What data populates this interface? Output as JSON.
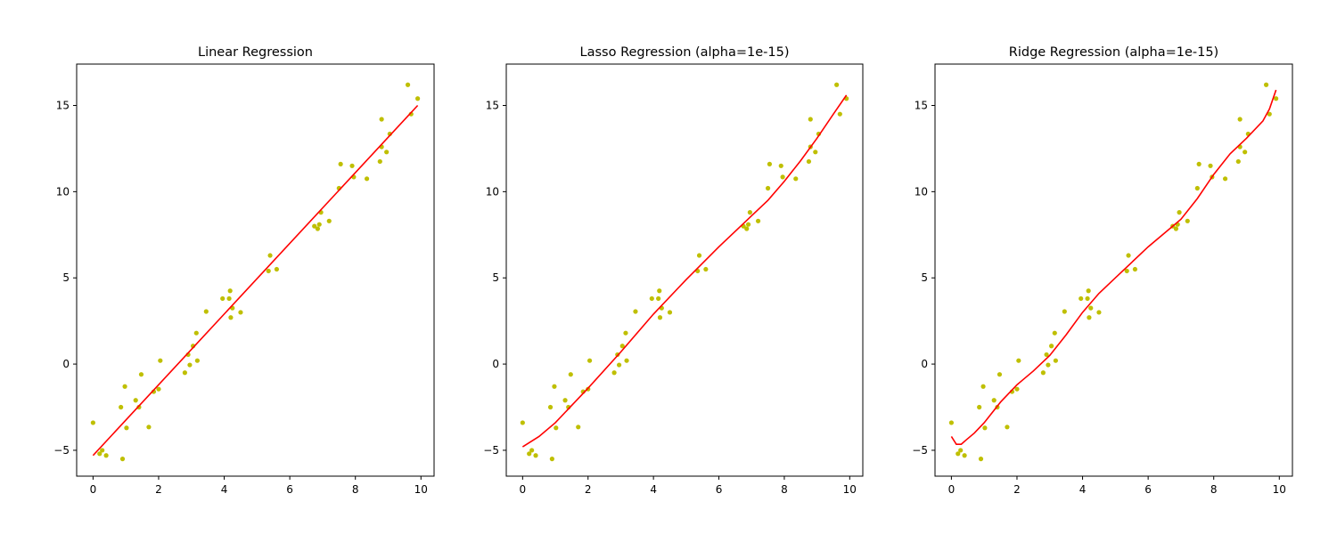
{
  "chart_data": [
    {
      "type": "scatter",
      "title": "Linear Regression",
      "xlim": [
        -0.5,
        10.4
      ],
      "ylim": [
        -6.5,
        17.4
      ],
      "xticks": [
        0,
        2,
        4,
        6,
        8,
        10
      ],
      "yticks": [
        -5,
        0,
        5,
        10,
        15
      ],
      "points_color": "#bfbf00",
      "line_color": "#ff0000",
      "points": [
        [
          0.0,
          -3.4
        ],
        [
          0.2,
          -5.2
        ],
        [
          0.28,
          -5.0
        ],
        [
          0.4,
          -5.3
        ],
        [
          0.85,
          -2.5
        ],
        [
          0.9,
          -5.5
        ],
        [
          0.97,
          -1.3
        ],
        [
          1.02,
          -3.7
        ],
        [
          1.3,
          -2.1
        ],
        [
          1.4,
          -2.5
        ],
        [
          1.47,
          -0.6
        ],
        [
          1.7,
          -3.65
        ],
        [
          1.85,
          -1.6
        ],
        [
          2.0,
          -1.45
        ],
        [
          2.05,
          0.2
        ],
        [
          2.8,
          -0.5
        ],
        [
          2.9,
          0.55
        ],
        [
          2.95,
          -0.05
        ],
        [
          3.05,
          1.05
        ],
        [
          3.15,
          1.8
        ],
        [
          3.18,
          0.2
        ],
        [
          3.45,
          3.05
        ],
        [
          3.95,
          3.8
        ],
        [
          4.15,
          3.8
        ],
        [
          4.18,
          4.25
        ],
        [
          4.2,
          2.7
        ],
        [
          4.25,
          3.25
        ],
        [
          4.5,
          3.0
        ],
        [
          5.35,
          5.4
        ],
        [
          5.4,
          6.3
        ],
        [
          5.6,
          5.5
        ],
        [
          6.75,
          8.0
        ],
        [
          6.85,
          7.85
        ],
        [
          6.9,
          8.1
        ],
        [
          6.95,
          8.8
        ],
        [
          7.2,
          8.3
        ],
        [
          7.5,
          10.2
        ],
        [
          7.55,
          11.6
        ],
        [
          7.9,
          11.5
        ],
        [
          7.95,
          10.85
        ],
        [
          8.35,
          10.75
        ],
        [
          8.75,
          11.75
        ],
        [
          8.8,
          14.2
        ],
        [
          8.8,
          12.6
        ],
        [
          8.95,
          12.3
        ],
        [
          9.05,
          13.35
        ],
        [
          9.6,
          16.2
        ],
        [
          9.7,
          14.5
        ],
        [
          9.9,
          15.4
        ]
      ],
      "line": {
        "x": [
          0.0,
          9.9
        ],
        "y": [
          -5.3,
          15.0
        ]
      }
    },
    {
      "type": "scatter",
      "title": "Lasso Regression (alpha=1e-15)",
      "xlim": [
        -0.5,
        10.4
      ],
      "ylim": [
        -6.5,
        17.4
      ],
      "xticks": [
        0,
        2,
        4,
        6,
        8,
        10
      ],
      "yticks": [
        -5,
        0,
        5,
        10,
        15
      ],
      "points_color": "#bfbf00",
      "line_color": "#ff0000",
      "points": [
        [
          0.0,
          -3.4
        ],
        [
          0.2,
          -5.2
        ],
        [
          0.28,
          -5.0
        ],
        [
          0.4,
          -5.3
        ],
        [
          0.85,
          -2.5
        ],
        [
          0.9,
          -5.5
        ],
        [
          0.97,
          -1.3
        ],
        [
          1.02,
          -3.7
        ],
        [
          1.3,
          -2.1
        ],
        [
          1.4,
          -2.5
        ],
        [
          1.47,
          -0.6
        ],
        [
          1.7,
          -3.65
        ],
        [
          1.85,
          -1.6
        ],
        [
          2.0,
          -1.45
        ],
        [
          2.05,
          0.2
        ],
        [
          2.8,
          -0.5
        ],
        [
          2.9,
          0.55
        ],
        [
          2.95,
          -0.05
        ],
        [
          3.05,
          1.05
        ],
        [
          3.15,
          1.8
        ],
        [
          3.18,
          0.2
        ],
        [
          3.45,
          3.05
        ],
        [
          3.95,
          3.8
        ],
        [
          4.15,
          3.8
        ],
        [
          4.18,
          4.25
        ],
        [
          4.2,
          2.7
        ],
        [
          4.25,
          3.25
        ],
        [
          4.5,
          3.0
        ],
        [
          5.35,
          5.4
        ],
        [
          5.4,
          6.3
        ],
        [
          5.6,
          5.5
        ],
        [
          6.75,
          8.0
        ],
        [
          6.85,
          7.85
        ],
        [
          6.9,
          8.1
        ],
        [
          6.95,
          8.8
        ],
        [
          7.2,
          8.3
        ],
        [
          7.5,
          10.2
        ],
        [
          7.55,
          11.6
        ],
        [
          7.9,
          11.5
        ],
        [
          7.95,
          10.85
        ],
        [
          8.35,
          10.75
        ],
        [
          8.75,
          11.75
        ],
        [
          8.8,
          14.2
        ],
        [
          8.8,
          12.6
        ],
        [
          8.95,
          12.3
        ],
        [
          9.05,
          13.35
        ],
        [
          9.6,
          16.2
        ],
        [
          9.7,
          14.5
        ],
        [
          9.9,
          15.4
        ]
      ],
      "line": {
        "x": [
          0.0,
          0.5,
          1.0,
          1.5,
          2.0,
          3.0,
          4.0,
          5.0,
          6.0,
          7.0,
          7.5,
          8.0,
          8.5,
          9.0,
          9.5,
          9.9
        ],
        "y": [
          -4.8,
          -4.2,
          -3.4,
          -2.4,
          -1.4,
          0.7,
          2.9,
          4.9,
          6.8,
          8.6,
          9.5,
          10.6,
          11.8,
          13.1,
          14.5,
          15.6
        ]
      }
    },
    {
      "type": "scatter",
      "title": "Ridge Regression (alpha=1e-15)",
      "xlim": [
        -0.5,
        10.4
      ],
      "ylim": [
        -6.5,
        17.4
      ],
      "xticks": [
        0,
        2,
        4,
        6,
        8,
        10
      ],
      "yticks": [
        -5,
        0,
        5,
        10,
        15
      ],
      "points_color": "#bfbf00",
      "line_color": "#ff0000",
      "points": [
        [
          0.0,
          -3.4
        ],
        [
          0.2,
          -5.2
        ],
        [
          0.28,
          -5.0
        ],
        [
          0.4,
          -5.3
        ],
        [
          0.85,
          -2.5
        ],
        [
          0.9,
          -5.5
        ],
        [
          0.97,
          -1.3
        ],
        [
          1.02,
          -3.7
        ],
        [
          1.3,
          -2.1
        ],
        [
          1.4,
          -2.5
        ],
        [
          1.47,
          -0.6
        ],
        [
          1.7,
          -3.65
        ],
        [
          1.85,
          -1.6
        ],
        [
          2.0,
          -1.45
        ],
        [
          2.05,
          0.2
        ],
        [
          2.8,
          -0.5
        ],
        [
          2.9,
          0.55
        ],
        [
          2.95,
          -0.05
        ],
        [
          3.05,
          1.05
        ],
        [
          3.15,
          1.8
        ],
        [
          3.18,
          0.2
        ],
        [
          3.45,
          3.05
        ],
        [
          3.95,
          3.8
        ],
        [
          4.15,
          3.8
        ],
        [
          4.18,
          4.25
        ],
        [
          4.2,
          2.7
        ],
        [
          4.25,
          3.25
        ],
        [
          4.5,
          3.0
        ],
        [
          5.35,
          5.4
        ],
        [
          5.4,
          6.3
        ],
        [
          5.6,
          5.5
        ],
        [
          6.75,
          8.0
        ],
        [
          6.85,
          7.85
        ],
        [
          6.9,
          8.1
        ],
        [
          6.95,
          8.8
        ],
        [
          7.2,
          8.3
        ],
        [
          7.5,
          10.2
        ],
        [
          7.55,
          11.6
        ],
        [
          7.9,
          11.5
        ],
        [
          7.95,
          10.85
        ],
        [
          8.35,
          10.75
        ],
        [
          8.75,
          11.75
        ],
        [
          8.8,
          14.2
        ],
        [
          8.8,
          12.6
        ],
        [
          8.95,
          12.3
        ],
        [
          9.05,
          13.35
        ],
        [
          9.6,
          16.2
        ],
        [
          9.7,
          14.5
        ],
        [
          9.9,
          15.4
        ]
      ],
      "line": {
        "x": [
          0.0,
          0.15,
          0.3,
          0.45,
          0.7,
          1.0,
          1.5,
          2.0,
          2.5,
          3.0,
          3.5,
          4.0,
          4.5,
          5.0,
          6.0,
          6.5,
          7.0,
          7.5,
          8.0,
          8.5,
          9.0,
          9.5,
          9.7,
          9.9
        ],
        "y": [
          -4.2,
          -4.65,
          -4.65,
          -4.4,
          -4.0,
          -3.4,
          -2.2,
          -1.2,
          -0.4,
          0.5,
          1.7,
          3.0,
          4.1,
          5.0,
          6.8,
          7.6,
          8.4,
          9.6,
          11.0,
          12.2,
          13.1,
          14.1,
          14.8,
          15.9
        ]
      }
    }
  ]
}
